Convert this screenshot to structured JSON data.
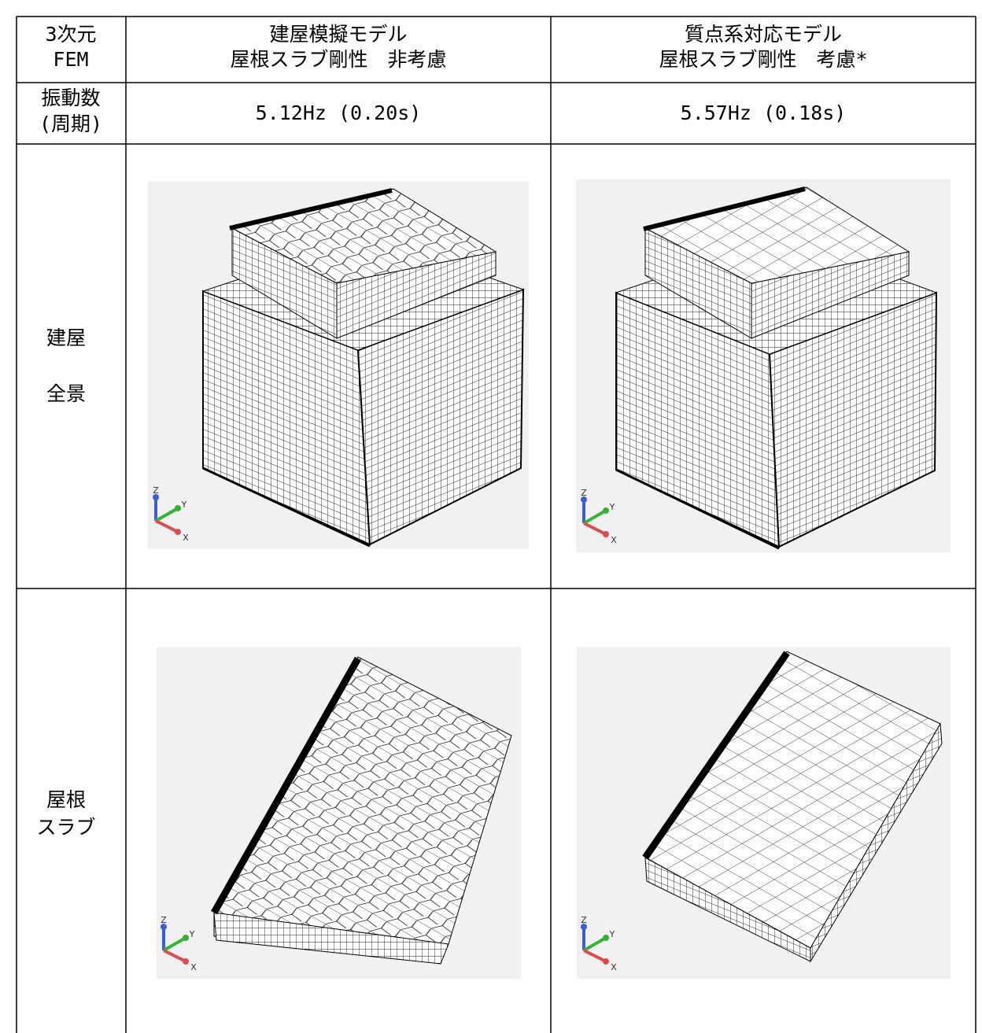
{
  "table": {
    "header": [
      [
        "3次元",
        "FEM"
      ],
      [
        "建屋模擬モデル",
        "屋根スラブ剛性　非考慮"
      ],
      [
        "質点系対応モデル",
        "屋根スラブ剛性　考慮*"
      ]
    ],
    "rows": [
      [
        [
          "振動数",
          "(周期)"
        ],
        [
          "5.12Hz (0.20s)"
        ],
        [
          "5.57Hz (0.18s)"
        ]
      ],
      [
        [
          "建屋",
          "全景"
        ]
      ],
      [
        [
          "屋根",
          "スラブ"
        ]
      ]
    ]
  },
  "figures": [
    {
      "axes": [
        "Z",
        "Y",
        "X"
      ]
    },
    {
      "axes": [
        "Z",
        "Y",
        "X"
      ]
    },
    {
      "axes": [
        "Z",
        "Y",
        "X"
      ]
    },
    {
      "axes": [
        "Z",
        "Y",
        "X"
      ]
    }
  ]
}
